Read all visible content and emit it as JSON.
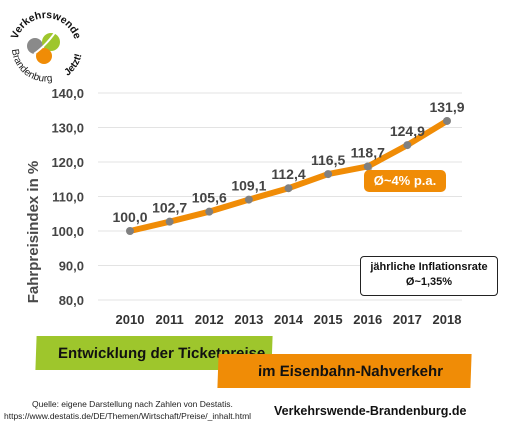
{
  "logo": {
    "top_text": "Verkehrswende",
    "bottom_text": "Brandenburg",
    "right_text": "Jetzt!",
    "colors": {
      "green": "#9ec62c",
      "orange": "#f08c06",
      "gray": "#8a8a8a"
    }
  },
  "chart_data": {
    "type": "line",
    "categories": [
      "2010",
      "2011",
      "2012",
      "2013",
      "2014",
      "2015",
      "2016",
      "2017",
      "2018"
    ],
    "values": [
      100.0,
      102.7,
      105.6,
      109.1,
      112.4,
      116.5,
      118.7,
      124.9,
      131.9
    ],
    "data_labels": [
      "100,0",
      "102,7",
      "105,6",
      "109,1",
      "112,4",
      "116,5",
      "118,7",
      "124,9",
      "131,9"
    ],
    "ylabel": "Fahrpreisindex in %",
    "ylim": [
      80,
      140
    ],
    "yticks": [
      "80,0",
      "90,0",
      "100,0",
      "110,0",
      "120,0",
      "130,0",
      "140,0"
    ],
    "yticks_values": [
      80,
      90,
      100,
      110,
      120,
      130,
      140
    ],
    "grid": true,
    "line_color": "#f08c06",
    "marker_color": "#808080",
    "grid_color": "#e3e3e3"
  },
  "callout": {
    "text": "Ø~4% p.a."
  },
  "inflation_box": {
    "title": "jährliche Inflationsrate",
    "value": "Ø~1,35%"
  },
  "banner1": {
    "text": "Entwicklung der Ticketpreise",
    "color": "#9ec62c"
  },
  "banner2": {
    "text": "im Eisenbahn-Nahverkehr",
    "color": "#f08c06"
  },
  "source": {
    "line1": "Quelle: eigene Darstellung nach Zahlen von Destatis.",
    "line2": "https://www.destatis.de/DE/Themen/Wirtschaft/Preise/_inhalt.html"
  },
  "website": "Verkehrswende-Brandenburg.de"
}
